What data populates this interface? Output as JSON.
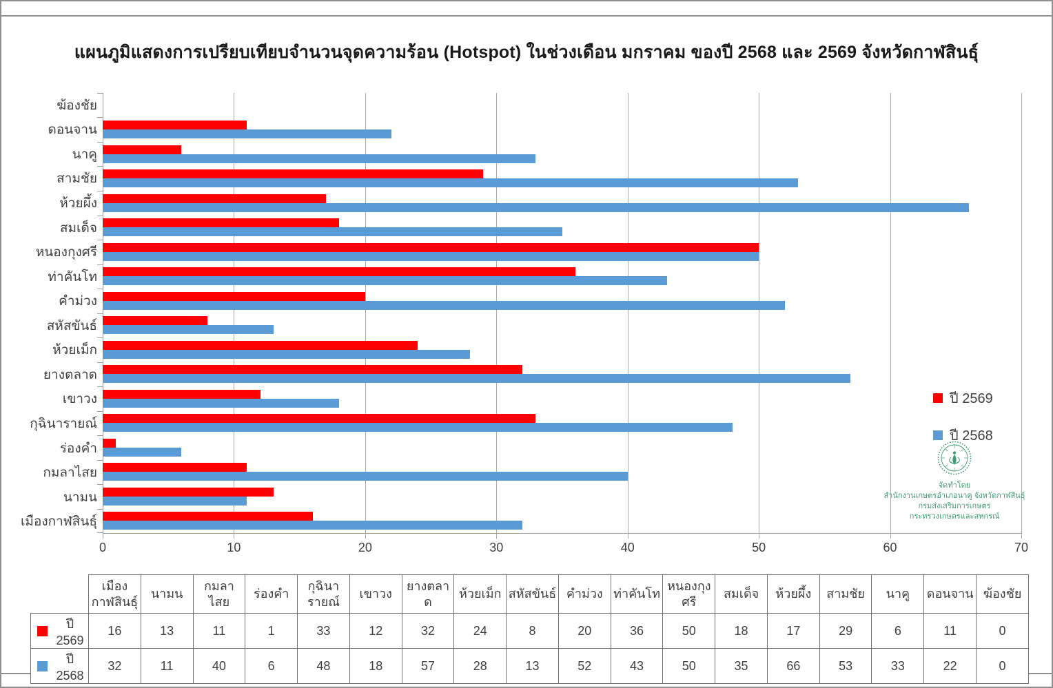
{
  "frame": {
    "background": "#ffffff",
    "border_color": "#8f8f8f"
  },
  "chart_data": {
    "type": "bar",
    "orientation": "horizontal",
    "title": "แผนภูมิแสดงการเปรียบเทียบจำนวนจุดความร้อน (Hotspot) ในช่วงเดือน มกราคม ของปี 2568 และ 2569 จังหวัดกาฬสินธุ์",
    "categories": [
      "เมืองกาฬสินธุ์",
      "นามน",
      "กมลาไสย",
      "ร่องคำ",
      "กุฉินารายณ์",
      "เขาวง",
      "ยางตลาด",
      "ห้วยเม็ก",
      "สหัสขันธ์",
      "คำม่วง",
      "ท่าคันโท",
      "หนองกุงศรี",
      "สมเด็จ",
      "ห้วยผึ้ง",
      "สามชัย",
      "นาคู",
      "ดอนจาน",
      "ฆ้องชัย"
    ],
    "category_axis_note": "first category renders at bottom of chart, last at top",
    "series": [
      {
        "name": "ปี 2569",
        "color": "#ff0000",
        "values": [
          16,
          13,
          11,
          1,
          33,
          12,
          32,
          24,
          8,
          20,
          36,
          50,
          18,
          17,
          29,
          6,
          11,
          0
        ]
      },
      {
        "name": "ปี 2568",
        "color": "#5b9bd5",
        "values": [
          32,
          11,
          40,
          6,
          48,
          18,
          57,
          28,
          13,
          52,
          43,
          50,
          35,
          66,
          53,
          33,
          22,
          0
        ]
      }
    ],
    "xlabel": "",
    "ylabel": "",
    "xlim": [
      0,
      70
    ],
    "xticks": [
      0,
      10,
      20,
      30,
      40,
      50,
      60,
      70
    ],
    "grid": "vertical-major-on",
    "legend_position": "right-inside-plot",
    "show_data_table": true
  },
  "logo": {
    "emblem": "department-of-agricultural-extension-green-seal",
    "color": "#3f9b72",
    "caption_lines": [
      "จัดทำโดย",
      "สำนักงานเกษตรอำเภอนาคู จังหวัดกาฬสินธุ์",
      "กรมส่งเสริมการเกษตร",
      "กระทรวงเกษตรและสหกรณ์"
    ]
  }
}
